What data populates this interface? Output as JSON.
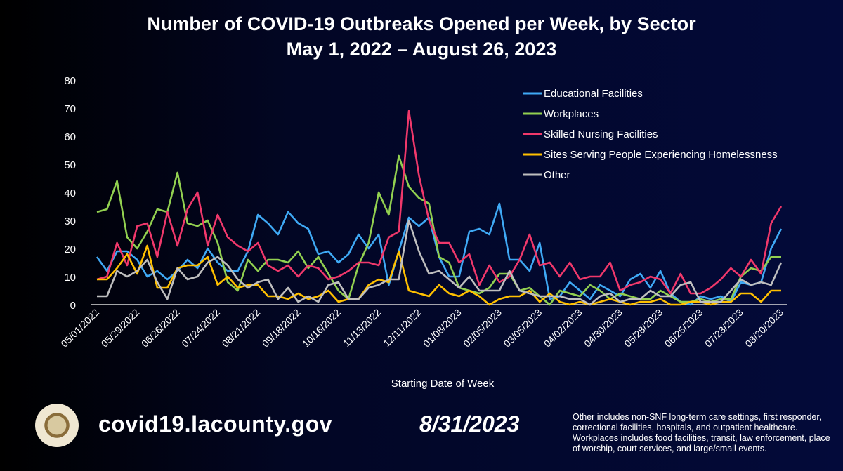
{
  "chart_data": {
    "type": "line",
    "title": "Number of COVID-19 Outbreaks Opened per Week, by Sector",
    "subtitle": "May 1, 2022 – August 26, 2023",
    "xlabel": "Starting Date of Week",
    "ylabel": "",
    "ylim": [
      0,
      80
    ],
    "yticks": [
      0,
      10,
      20,
      30,
      40,
      50,
      60,
      70,
      80
    ],
    "x_start": "05/01/2022",
    "x_tick_labels": [
      "05/01/2022",
      "05/29/2022",
      "06/26/2022",
      "07/24/2022",
      "08/21/2022",
      "09/18/2022",
      "10/16/2022",
      "11/13/2022",
      "12/11/2022",
      "01/08/2023",
      "02/05/2023",
      "03/05/2023",
      "04/02/2023",
      "04/30/2023",
      "05/28/2023",
      "06/25/2023",
      "07/23/2023",
      "08/20/2023"
    ],
    "grid": false,
    "legend_position": "top-right",
    "series": [
      {
        "name": "Educational Facilities",
        "color": "#3fa9f5",
        "values": [
          17,
          12,
          19,
          19,
          16,
          10,
          12,
          9,
          12,
          16,
          13,
          20,
          15,
          12,
          12,
          19,
          32,
          29,
          25,
          33,
          29,
          27,
          18,
          19,
          15,
          18,
          25,
          20,
          25,
          7,
          19,
          31,
          28,
          31,
          17,
          10,
          10,
          26,
          27,
          25,
          36,
          16,
          16,
          12,
          22,
          2,
          3,
          8,
          5,
          2,
          7,
          5,
          3,
          9,
          11,
          6,
          12,
          4,
          1,
          0,
          3,
          2,
          3,
          1,
          8,
          7,
          8,
          20,
          27
        ]
      },
      {
        "name": "Workplaces",
        "color": "#92d050",
        "values": [
          33,
          34,
          44,
          24,
          20,
          26,
          34,
          33,
          47,
          29,
          28,
          30,
          22,
          8,
          5,
          16,
          12,
          16,
          16,
          15,
          19,
          13,
          17,
          11,
          5,
          2,
          14,
          22,
          40,
          32,
          53,
          42,
          38,
          36,
          17,
          15,
          6,
          5,
          4,
          6,
          11,
          11,
          5,
          6,
          3,
          0,
          5,
          4,
          3,
          7,
          5,
          2,
          4,
          3,
          2,
          2,
          5,
          3,
          1,
          1,
          2,
          1,
          2,
          2,
          10,
          13,
          12,
          17,
          17
        ]
      },
      {
        "name": "Skilled Nursing Facilities",
        "color": "#f0386b",
        "values": [
          9,
          10,
          22,
          14,
          28,
          29,
          17,
          33,
          21,
          34,
          40,
          21,
          32,
          24,
          21,
          19,
          22,
          14,
          12,
          14,
          10,
          14,
          13,
          9,
          10,
          12,
          15,
          15,
          14,
          24,
          26,
          69,
          46,
          30,
          22,
          22,
          15,
          18,
          7,
          14,
          8,
          10,
          16,
          25,
          14,
          15,
          10,
          15,
          9,
          10,
          10,
          15,
          5,
          7,
          8,
          10,
          9,
          4,
          11,
          4,
          4,
          6,
          9,
          13,
          10,
          16,
          11,
          29,
          35
        ]
      },
      {
        "name": "Sites Serving People Experiencing Homelessness",
        "color": "#ffc000",
        "values": [
          9,
          9,
          13,
          18,
          11,
          21,
          6,
          6,
          13,
          14,
          14,
          17,
          7,
          10,
          6,
          7,
          7,
          3,
          3,
          2,
          4,
          2,
          3,
          5,
          1,
          2,
          2,
          7,
          9,
          8,
          19,
          5,
          4,
          3,
          7,
          4,
          3,
          5,
          3,
          0,
          2,
          3,
          3,
          5,
          1,
          4,
          1,
          0,
          1,
          0,
          1,
          2,
          1,
          0,
          1,
          1,
          2,
          0,
          0,
          1,
          1,
          0,
          1,
          1,
          4,
          4,
          1,
          5,
          5
        ]
      },
      {
        "name": "Other",
        "color": "#bfbfbf",
        "values": [
          3,
          3,
          12,
          10,
          12,
          16,
          8,
          2,
          13,
          9,
          10,
          15,
          17,
          14,
          9,
          6,
          8,
          9,
          2,
          6,
          1,
          3,
          1,
          7,
          8,
          2,
          2,
          6,
          7,
          9,
          9,
          30,
          19,
          11,
          12,
          9,
          6,
          10,
          5,
          5,
          5,
          12,
          5,
          4,
          3,
          3,
          3,
          2,
          2,
          0,
          3,
          4,
          1,
          2,
          2,
          5,
          3,
          3,
          7,
          8,
          1,
          1,
          1,
          5,
          9,
          7,
          8,
          7,
          15
        ]
      }
    ]
  },
  "footer": {
    "url": "covid19.lacounty.gov",
    "date": "8/31/2023",
    "note": "Other includes non-SNF long-term care settings, first responder, correctional facilities, hospitals, and outpatient healthcare. Workplaces includes food facilities, transit, law enforcement, place of worship, court services, and large/small events.",
    "seal_text": "COUNTY OF LOS ANGELES CALIFORNIA"
  }
}
